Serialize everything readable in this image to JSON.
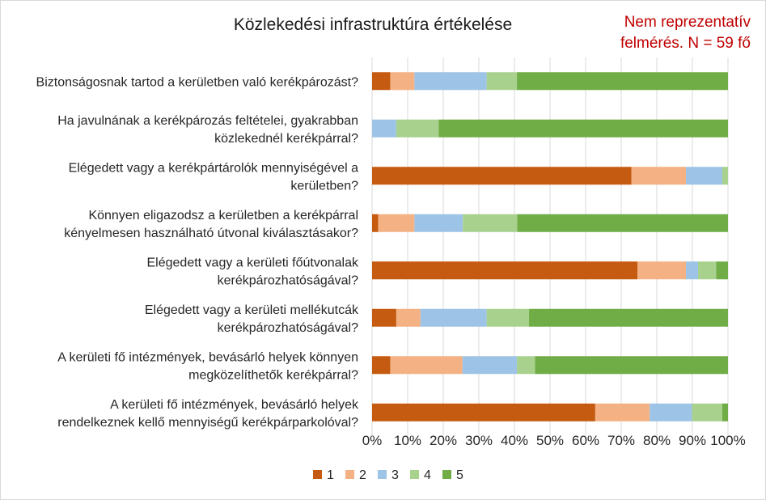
{
  "chart_data": {
    "type": "bar",
    "orientation": "horizontal",
    "stacked": true,
    "percent_stacked": true,
    "title": "Közlekedési infrastruktúra értékelése",
    "note_lines": [
      "Nem reprezentatív",
      "felmérés. N = 59 fő"
    ],
    "categories": [
      [
        "Biztonságosnak tartod a kerületben való kerékpározást?"
      ],
      [
        "Ha javulnának a kerékpározás feltételei, gyakrabban",
        "közlekednél kerékpárral?"
      ],
      [
        "Elégedett vagy a kerékpártárolók mennyiségével a",
        "kerületben?"
      ],
      [
        "Könnyen eligazodsz a kerületben a kerékpárral",
        "kényelmesen használható útvonal kiválasztásakor?"
      ],
      [
        "Elégedett vagy a kerületi főútvonalak",
        "kerékpározhatóságával?"
      ],
      [
        "Elégedett vagy a kerületi mellékutcák",
        "kerékpározhatóságával?"
      ],
      [
        "A kerületi fő intézmények, bevásárló helyek könnyen",
        "megközelíthetők kerékpárral?"
      ],
      [
        "A kerületi fő intézmények, bevásárló helyek",
        "rendelkeznek kellő mennyiségű kerékpárparkolóval?"
      ]
    ],
    "series": [
      {
        "name": "1",
        "color": "#c55a11",
        "values": [
          5.1,
          0,
          72.9,
          1.7,
          74.6,
          6.8,
          5.1,
          62.7
        ]
      },
      {
        "name": "2",
        "color": "#f4b183",
        "values": [
          6.8,
          0,
          15.3,
          10.2,
          13.6,
          6.8,
          20.3,
          15.3
        ]
      },
      {
        "name": "3",
        "color": "#9dc3e6",
        "values": [
          20.3,
          6.8,
          10.2,
          13.6,
          3.4,
          18.6,
          15.3,
          11.9
        ]
      },
      {
        "name": "4",
        "color": "#a9d18e",
        "values": [
          8.5,
          11.9,
          1.6,
          15.3,
          5.1,
          11.9,
          5.1,
          8.5
        ]
      },
      {
        "name": "5",
        "color": "#70ad47",
        "values": [
          59.3,
          81.3,
          0,
          59.2,
          3.3,
          55.9,
          54.2,
          1.6
        ]
      }
    ],
    "xlim": [
      0,
      100
    ],
    "x_ticks": [
      "0%",
      "10%",
      "20%",
      "30%",
      "40%",
      "50%",
      "60%",
      "70%",
      "80%",
      "90%",
      "100%"
    ],
    "grid": true,
    "legend_position": "bottom"
  }
}
